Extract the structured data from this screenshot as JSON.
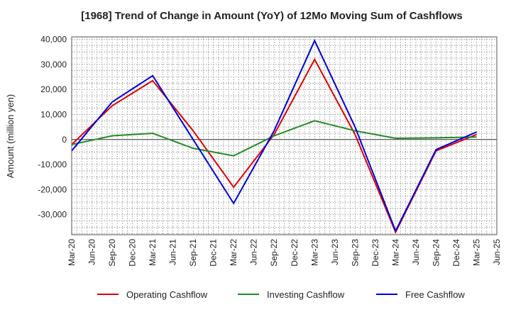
{
  "chart_data": {
    "type": "line",
    "title": "[1968]  Trend of Change in Amount (YoY) of 12Mo Moving Sum of Cashflows",
    "xlabel": "",
    "ylabel": "Amount (million yen)",
    "ylim": [
      -38000,
      41000
    ],
    "yticks": [
      40000,
      30000,
      20000,
      10000,
      0,
      -10000,
      -20000,
      -30000
    ],
    "ytick_labels": [
      "40,000",
      "30,000",
      "20,000",
      "10,000",
      "0",
      "-10,000",
      "-20,000",
      "-30,000"
    ],
    "categories": [
      "Mar-20",
      "Jun-20",
      "Sep-20",
      "Dec-20",
      "Mar-21",
      "Jun-21",
      "Sep-21",
      "Dec-21",
      "Mar-22",
      "Jun-22",
      "Sep-22",
      "Dec-22",
      "Mar-23",
      "Jun-23",
      "Sep-23",
      "Dec-23",
      "Mar-24",
      "Jun-24",
      "Sep-24",
      "Dec-24",
      "Mar-25",
      "Jun-25"
    ],
    "grid": true,
    "legend_position": "bottom",
    "series": [
      {
        "name": "Operating Cashflow",
        "color": "#e00000",
        "points": [
          {
            "category": "Mar-20",
            "value": -2000
          },
          {
            "category": "Sep-20",
            "value": 13500
          },
          {
            "category": "Mar-21",
            "value": 23500
          },
          {
            "category": "Sep-21",
            "value": 3500
          },
          {
            "category": "Mar-22",
            "value": -19000
          },
          {
            "category": "Sep-22",
            "value": 2000
          },
          {
            "category": "Mar-23",
            "value": 32000
          },
          {
            "category": "Sep-23",
            "value": 2000
          },
          {
            "category": "Mar-24",
            "value": -37000
          },
          {
            "category": "Sep-24",
            "value": -4500
          },
          {
            "category": "Mar-25",
            "value": 2000
          }
        ]
      },
      {
        "name": "Investing Cashflow",
        "color": "#228b22",
        "points": [
          {
            "category": "Mar-20",
            "value": -2000
          },
          {
            "category": "Sep-20",
            "value": 1500
          },
          {
            "category": "Mar-21",
            "value": 2500
          },
          {
            "category": "Sep-21",
            "value": -3500
          },
          {
            "category": "Mar-22",
            "value": -6500
          },
          {
            "category": "Sep-22",
            "value": 1500
          },
          {
            "category": "Mar-23",
            "value": 7500
          },
          {
            "category": "Sep-23",
            "value": 3500
          },
          {
            "category": "Mar-24",
            "value": 500
          },
          {
            "category": "Sep-24",
            "value": 700
          },
          {
            "category": "Mar-25",
            "value": 1000
          }
        ]
      },
      {
        "name": "Free Cashflow",
        "color": "#0000dd",
        "points": [
          {
            "category": "Mar-20",
            "value": -4500
          },
          {
            "category": "Sep-20",
            "value": 15000
          },
          {
            "category": "Mar-21",
            "value": 25500
          },
          {
            "category": "Sep-21",
            "value": 0
          },
          {
            "category": "Mar-22",
            "value": -25500
          },
          {
            "category": "Sep-22",
            "value": 3500
          },
          {
            "category": "Mar-23",
            "value": 39500
          },
          {
            "category": "Sep-23",
            "value": 5000
          },
          {
            "category": "Mar-24",
            "value": -36500
          },
          {
            "category": "Sep-24",
            "value": -4000
          },
          {
            "category": "Mar-25",
            "value": 3000
          }
        ]
      }
    ]
  }
}
